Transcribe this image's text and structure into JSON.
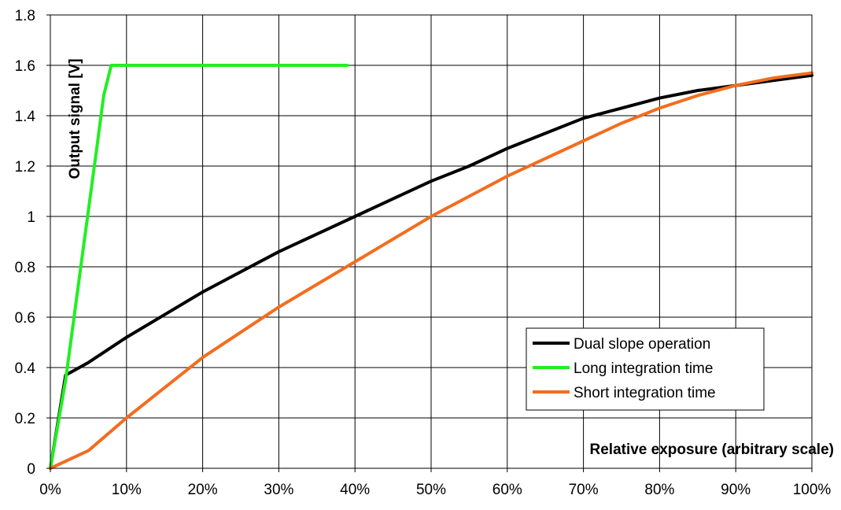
{
  "chart_data": {
    "type": "line",
    "title": "",
    "xlabel": "Relative exposure (arbitrary scale)",
    "ylabel": "Output signal [V]",
    "xlim": [
      0,
      100
    ],
    "ylim": [
      0,
      1.8
    ],
    "x_ticks": [
      "0%",
      "10%",
      "20%",
      "30%",
      "40%",
      "50%",
      "60%",
      "70%",
      "80%",
      "90%",
      "100%"
    ],
    "y_ticks": [
      "0",
      "0.2",
      "0.4",
      "0.6",
      "0.8",
      "1",
      "1.2",
      "1.4",
      "1.6",
      "1.8"
    ],
    "grid": true,
    "legend_position": "bottom-right",
    "series": [
      {
        "name": "Dual slope operation",
        "color": "#000000",
        "x": [
          0,
          2,
          5,
          10,
          15,
          20,
          25,
          30,
          35,
          40,
          45,
          50,
          55,
          60,
          65,
          70,
          75,
          80,
          85,
          90,
          95,
          100
        ],
        "y": [
          0,
          0.37,
          0.42,
          0.52,
          0.61,
          0.7,
          0.78,
          0.86,
          0.93,
          1.0,
          1.07,
          1.14,
          1.2,
          1.27,
          1.33,
          1.39,
          1.43,
          1.47,
          1.5,
          1.52,
          1.54,
          1.56
        ]
      },
      {
        "name": "Long integration time",
        "color": "#22ee22",
        "x": [
          0,
          2,
          4,
          6,
          7,
          8,
          10,
          20,
          30,
          39
        ],
        "y": [
          0,
          0.35,
          0.8,
          1.25,
          1.48,
          1.6,
          1.6,
          1.6,
          1.6,
          1.6
        ]
      },
      {
        "name": "Short integration time",
        "color": "#f26d1e",
        "x": [
          0,
          5,
          10,
          15,
          20,
          25,
          30,
          35,
          40,
          45,
          50,
          55,
          60,
          65,
          70,
          75,
          80,
          85,
          90,
          95,
          100
        ],
        "y": [
          0,
          0.07,
          0.2,
          0.32,
          0.44,
          0.54,
          0.64,
          0.73,
          0.82,
          0.91,
          1.0,
          1.08,
          1.16,
          1.23,
          1.3,
          1.37,
          1.43,
          1.48,
          1.52,
          1.55,
          1.57
        ]
      }
    ]
  }
}
